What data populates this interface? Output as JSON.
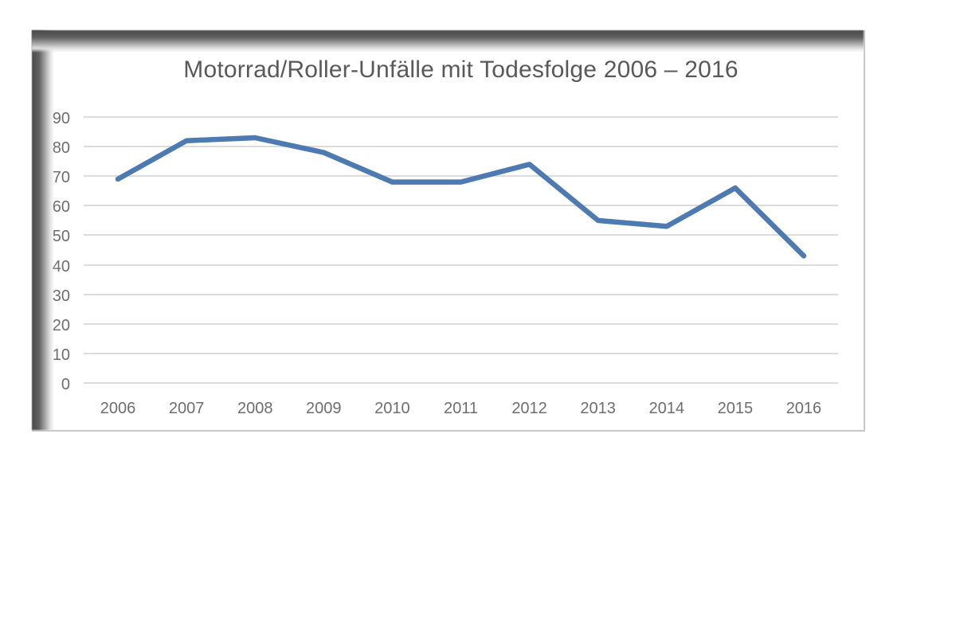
{
  "page": {
    "background": "#ffffff"
  },
  "chart_data": {
    "type": "line",
    "title": "Motorrad/Roller-Unfälle mit Todesfolge 2006 – 2016",
    "categories": [
      "2006",
      "2007",
      "2008",
      "2009",
      "2010",
      "2011",
      "2012",
      "2013",
      "2014",
      "2015",
      "2016"
    ],
    "values": [
      69,
      82,
      83,
      78,
      68,
      68,
      74,
      55,
      53,
      66,
      43
    ],
    "xlabel": "",
    "ylabel": "",
    "ylim": [
      0,
      90
    ],
    "ytick_step": 10,
    "yticks": [
      0,
      10,
      20,
      30,
      40,
      50,
      60,
      70,
      80,
      90
    ],
    "grid": true,
    "legend": "none",
    "line_width": 6.5,
    "colors": {
      "line": "#4d7ab1",
      "gridline": "#dcdcdc",
      "tick_label": "#6e6e6e",
      "title": "#595959",
      "frame_shadow": "#4a4a4a",
      "frame_border": "#c8c8c8"
    }
  }
}
